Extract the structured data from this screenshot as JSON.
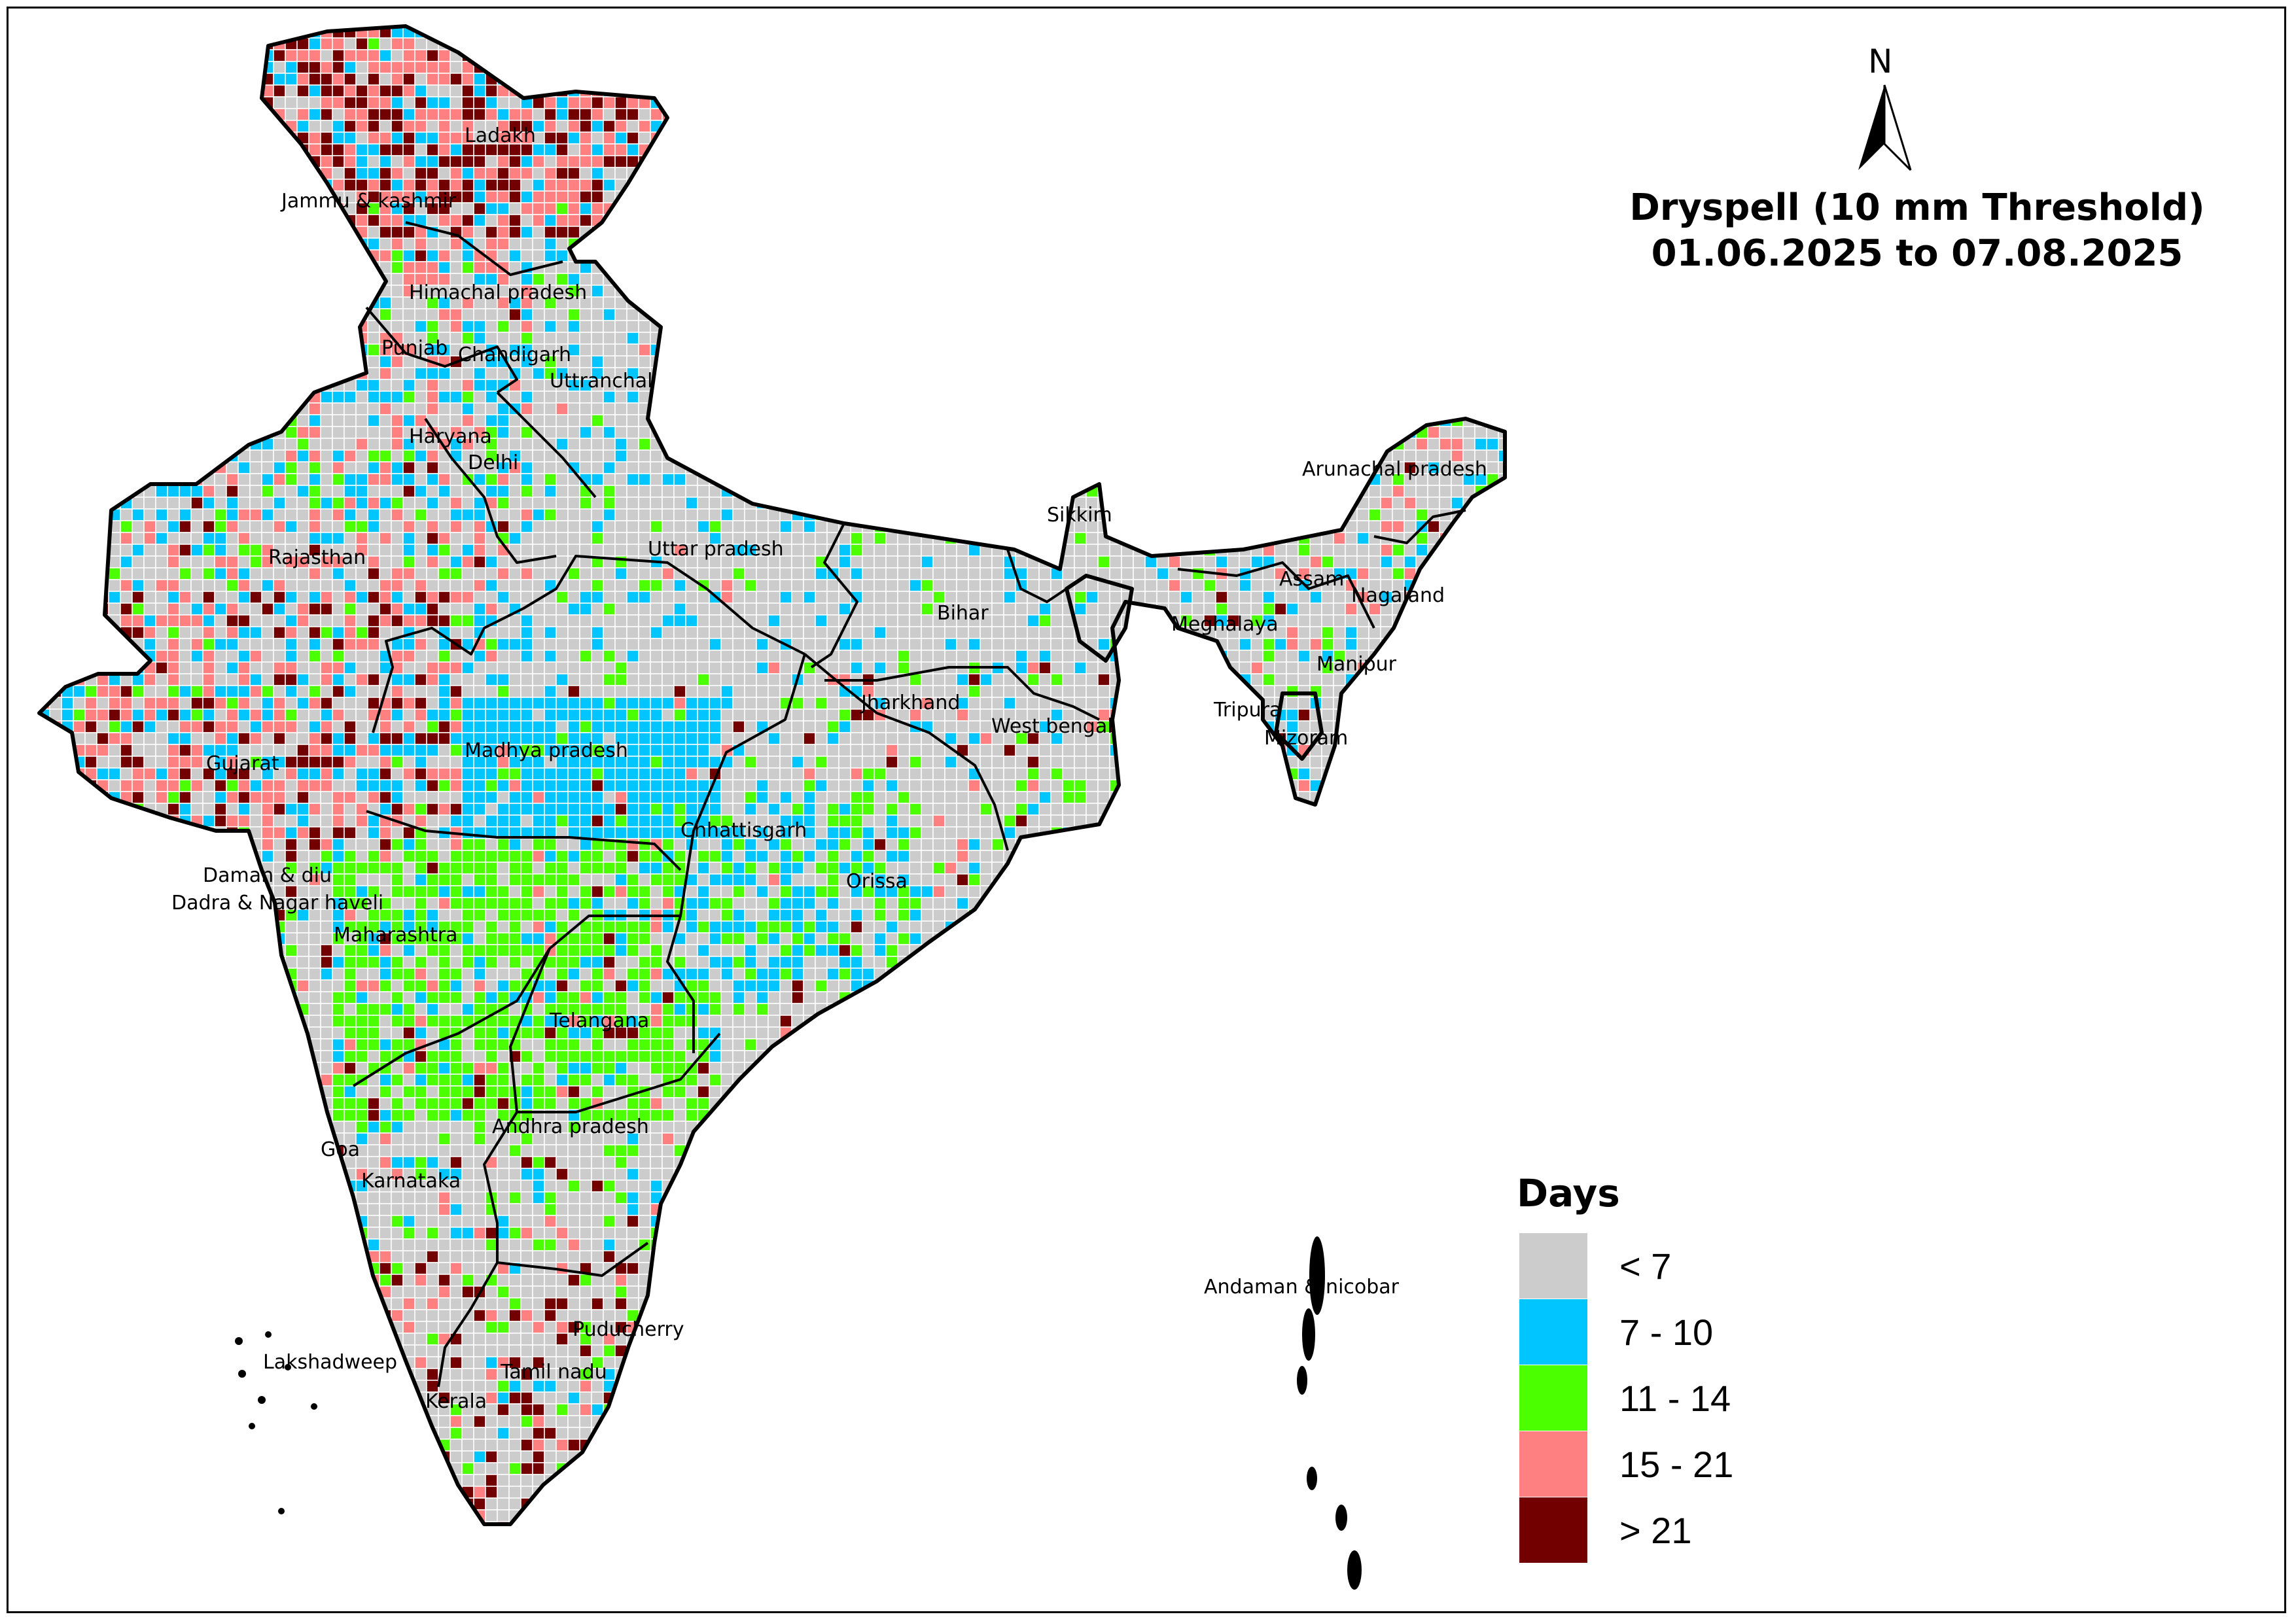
{
  "title": {
    "line1": "Dryspell (10 mm Threshold)",
    "line2": "01.06.2025 to 07.08.2025"
  },
  "north_arrow": {
    "label": "N",
    "icon": "north-arrow-icon"
  },
  "legend": {
    "title": "Days",
    "classes": [
      {
        "label": "< 7",
        "color": "#cccccc"
      },
      {
        "label": "7 - 10",
        "color": "#00c5ff"
      },
      {
        "label": "11 - 14",
        "color": "#4cff00"
      },
      {
        "label": "15 - 21",
        "color": "#ff8080"
      },
      {
        "label": "> 21",
        "color": "#730000"
      }
    ]
  },
  "states": [
    "Ladakh",
    "Jammu & kashmir",
    "Himachal pradesh",
    "Punjab",
    "Chandigarh",
    "Uttranchal",
    "Haryana",
    "Delhi",
    "Rajasthan",
    "Uttar pradesh",
    "Sikkim",
    "Arunachal pradesh",
    "Assam",
    "Nagaland",
    "Meghalaya",
    "Bihar",
    "Manipur",
    "Jharkhand",
    "West bengal",
    "Tripura",
    "Mizoram",
    "Gujarat",
    "Madhya pradesh",
    "Chhattisgarh",
    "Daman & diu",
    "Dadra & Nagar haveli",
    "Orissa",
    "Maharashtra",
    "Telangana",
    "Andhra pradesh",
    "Goa",
    "Karnataka",
    "Andaman & nicobar",
    "Puducherry",
    "Lakshadweep",
    "Tamil nadu",
    "Kerala"
  ]
}
